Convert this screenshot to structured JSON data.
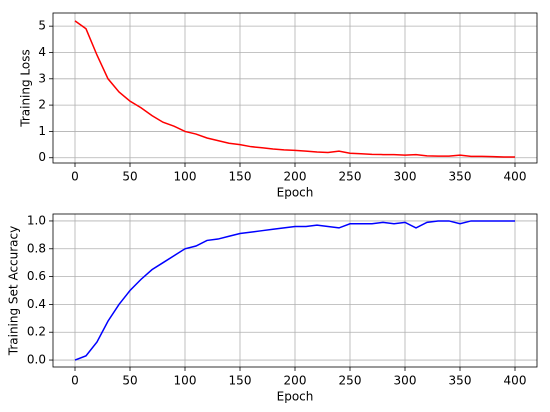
{
  "chart_data": [
    {
      "type": "line",
      "xlabel": "Epoch",
      "ylabel": "Training Loss",
      "color": "#ff0000",
      "grid": true,
      "x": [
        0,
        10,
        20,
        30,
        40,
        50,
        60,
        70,
        80,
        90,
        100,
        110,
        120,
        130,
        140,
        150,
        160,
        170,
        180,
        190,
        200,
        210,
        220,
        230,
        240,
        250,
        260,
        270,
        280,
        290,
        300,
        310,
        320,
        330,
        340,
        350,
        360,
        370,
        380,
        390,
        400
      ],
      "values": [
        5.2,
        4.9,
        3.9,
        3.0,
        2.5,
        2.15,
        1.9,
        1.6,
        1.35,
        1.2,
        1.0,
        0.9,
        0.75,
        0.65,
        0.55,
        0.5,
        0.42,
        0.38,
        0.33,
        0.3,
        0.28,
        0.25,
        0.22,
        0.2,
        0.25,
        0.17,
        0.15,
        0.13,
        0.12,
        0.12,
        0.1,
        0.12,
        0.07,
        0.06,
        0.06,
        0.1,
        0.05,
        0.05,
        0.04,
        0.03,
        0.03
      ],
      "xlim": [
        -20,
        420
      ],
      "ylim": [
        -0.2,
        5.5
      ],
      "xticks": [
        0,
        50,
        100,
        150,
        200,
        250,
        300,
        350,
        400
      ],
      "yticks": [
        0,
        1,
        2,
        3,
        4,
        5
      ]
    },
    {
      "type": "line",
      "xlabel": "Epoch",
      "ylabel": "Training Set Accuracy",
      "color": "#0000ff",
      "grid": true,
      "x": [
        0,
        10,
        20,
        30,
        40,
        50,
        60,
        70,
        80,
        90,
        100,
        110,
        120,
        130,
        140,
        150,
        160,
        170,
        180,
        190,
        200,
        210,
        220,
        230,
        240,
        250,
        260,
        270,
        280,
        290,
        300,
        310,
        320,
        330,
        340,
        350,
        360,
        370,
        380,
        390,
        400
      ],
      "values": [
        0,
        0.03,
        0.13,
        0.28,
        0.4,
        0.5,
        0.58,
        0.65,
        0.7,
        0.75,
        0.8,
        0.82,
        0.86,
        0.87,
        0.89,
        0.91,
        0.92,
        0.93,
        0.94,
        0.95,
        0.96,
        0.96,
        0.97,
        0.96,
        0.95,
        0.98,
        0.98,
        0.98,
        0.99,
        0.98,
        0.99,
        0.95,
        0.99,
        1.0,
        1.0,
        0.98,
        1.0,
        1.0,
        1.0,
        1.0,
        1.0
      ],
      "xlim": [
        -20,
        420
      ],
      "ylim": [
        -0.05,
        1.05
      ],
      "xticks": [
        0,
        50,
        100,
        150,
        200,
        250,
        300,
        350,
        400
      ],
      "yticks": [
        {
          "value": 0,
          "label": "0.0"
        },
        0.2,
        0.4,
        0.6,
        0.8,
        {
          "value": 1,
          "label": "1.0"
        }
      ]
    }
  ]
}
